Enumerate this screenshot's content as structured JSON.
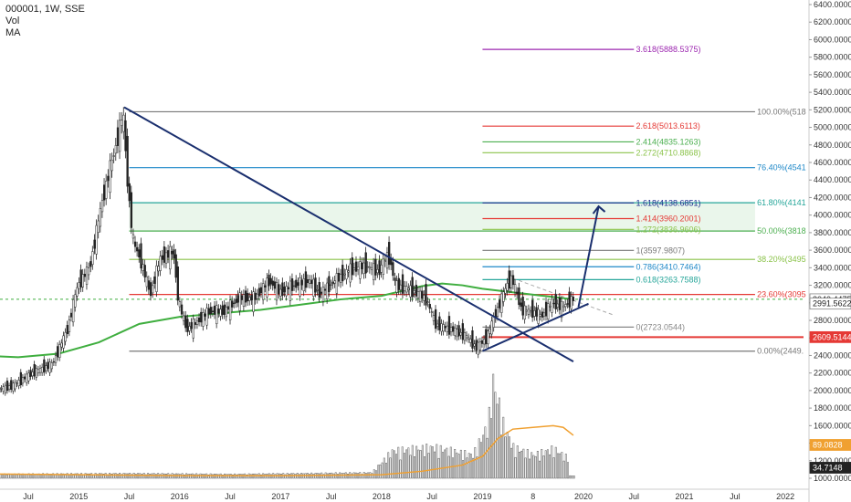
{
  "header": {
    "symbol": "000001, 1W, SSE",
    "vol": "Vol",
    "ma": "MA"
  },
  "colors": {
    "trendline": "#1a2f6e",
    "ma": "#3fae3f",
    "vol_ma": "#f0a030",
    "candle": "#222222",
    "red_line": "#e53935",
    "badge_red": "#e53935"
  },
  "chart_data": {
    "type": "candlestick",
    "ylim": [
      1000,
      6400
    ],
    "y_ticks": [
      "6400.0000",
      "6200.0000",
      "6000.0000",
      "5800.0000",
      "5600.0000",
      "5400.0000",
      "5200.0000",
      "5000.0000",
      "4800.0000",
      "4600.0000",
      "4400.0000",
      "4200.0000",
      "4000.0000",
      "3800.0000",
      "3600.0000",
      "3400.0000",
      "3200.0000",
      "3000.0000",
      "2800.0000",
      "2600.0000",
      "2400.0000",
      "2200.0000",
      "2000.0000",
      "1800.0000",
      "1600.0000",
      "1400.0000",
      "1200.0000",
      "1000.0000"
    ],
    "y_tick_values": [
      6400,
      6200,
      6000,
      5800,
      5600,
      5400,
      5200,
      5000,
      4800,
      4600,
      4400,
      4200,
      4000,
      3800,
      3600,
      3400,
      3200,
      3000,
      2800,
      2600,
      2400,
      2200,
      2000,
      1800,
      1600,
      1400,
      1200,
      1000
    ],
    "x_ticks": [
      {
        "label": "Jul",
        "t": 2014.5
      },
      {
        "label": "2015",
        "t": 2015.0
      },
      {
        "label": "Jul",
        "t": 2015.5
      },
      {
        "label": "2016",
        "t": 2016.0
      },
      {
        "label": "Jul",
        "t": 2016.5
      },
      {
        "label": "2017",
        "t": 2017.0
      },
      {
        "label": "Jul",
        "t": 2017.5
      },
      {
        "label": "2018",
        "t": 2018.0
      },
      {
        "label": "Jul",
        "t": 2018.5
      },
      {
        "label": "2019",
        "t": 2019.0
      },
      {
        "label": "8",
        "t": 2019.5
      },
      {
        "label": "2020",
        "t": 2020.0
      },
      {
        "label": "Jul",
        "t": 2020.5
      },
      {
        "label": "2021",
        "t": 2021.0
      },
      {
        "label": "Jul",
        "t": 2021.5
      },
      {
        "label": "2022",
        "t": 2022.0
      }
    ],
    "price_path": [
      [
        2014.15,
        2000
      ],
      [
        2014.35,
        2050
      ],
      [
        2014.55,
        2200
      ],
      [
        2014.75,
        2300
      ],
      [
        2014.9,
        2700
      ],
      [
        2015.0,
        3200
      ],
      [
        2015.12,
        3400
      ],
      [
        2015.25,
        4200
      ],
      [
        2015.38,
        4800
      ],
      [
        2015.45,
        5166
      ],
      [
        2015.5,
        4300
      ],
      [
        2015.55,
        3700
      ],
      [
        2015.62,
        3500
      ],
      [
        2015.72,
        3100
      ],
      [
        2015.82,
        3500
      ],
      [
        2015.95,
        3580
      ],
      [
        2016.0,
        3000
      ],
      [
        2016.08,
        2700
      ],
      [
        2016.15,
        2750
      ],
      [
        2016.3,
        2900
      ],
      [
        2016.45,
        2900
      ],
      [
        2016.6,
        3050
      ],
      [
        2016.75,
        3050
      ],
      [
        2016.9,
        3250
      ],
      [
        2017.0,
        3120
      ],
      [
        2017.15,
        3200
      ],
      [
        2017.3,
        3250
      ],
      [
        2017.4,
        3100
      ],
      [
        2017.55,
        3250
      ],
      [
        2017.7,
        3380
      ],
      [
        2017.85,
        3420
      ],
      [
        2017.98,
        3360
      ],
      [
        2018.08,
        3550
      ],
      [
        2018.15,
        3200
      ],
      [
        2018.3,
        3150
      ],
      [
        2018.45,
        3050
      ],
      [
        2018.55,
        2750
      ],
      [
        2018.7,
        2700
      ],
      [
        2018.85,
        2620
      ],
      [
        2018.95,
        2490
      ],
      [
        2019.05,
        2600
      ],
      [
        2019.15,
        2900
      ],
      [
        2019.25,
        3200
      ],
      [
        2019.3,
        3280
      ],
      [
        2019.4,
        2920
      ],
      [
        2019.5,
        2900
      ],
      [
        2019.6,
        2850
      ],
      [
        2019.7,
        3000
      ],
      [
        2019.8,
        2950
      ],
      [
        2019.9,
        3040
      ]
    ],
    "ma_path": [
      [
        2014.0,
        2400
      ],
      [
        2014.4,
        2380
      ],
      [
        2014.8,
        2420
      ],
      [
        2015.2,
        2550
      ],
      [
        2015.6,
        2760
      ],
      [
        2016.0,
        2840
      ],
      [
        2016.4,
        2880
      ],
      [
        2016.8,
        2920
      ],
      [
        2017.2,
        2980
      ],
      [
        2017.6,
        3040
      ],
      [
        2018.0,
        3080
      ],
      [
        2018.4,
        3190
      ],
      [
        2018.6,
        3220
      ],
      [
        2018.8,
        3200
      ],
      [
        2019.0,
        3160
      ],
      [
        2019.3,
        3120
      ],
      [
        2019.6,
        3080
      ],
      [
        2019.9,
        3040
      ]
    ],
    "volume_spikes": [
      [
        2014.0,
        1050
      ],
      [
        2015.5,
        1060
      ],
      [
        2016.5,
        1050
      ],
      [
        2017.9,
        1070
      ],
      [
        2018.1,
        1350
      ],
      [
        2018.5,
        1400
      ],
      [
        2018.9,
        1300
      ],
      [
        2019.05,
        1700
      ],
      [
        2019.1,
        2250
      ],
      [
        2019.15,
        2000
      ],
      [
        2019.2,
        1700
      ],
      [
        2019.3,
        1400
      ],
      [
        2019.5,
        1300
      ],
      [
        2019.7,
        1380
      ],
      [
        2019.85,
        1250
      ]
    ],
    "volume_ma_path": [
      [
        2014.0,
        1050
      ],
      [
        2015.0,
        1040
      ],
      [
        2016.0,
        1030
      ],
      [
        2017.0,
        1030
      ],
      [
        2018.0,
        1040
      ],
      [
        2018.4,
        1080
      ],
      [
        2018.8,
        1150
      ],
      [
        2019.0,
        1250
      ],
      [
        2019.15,
        1450
      ],
      [
        2019.3,
        1560
      ],
      [
        2019.5,
        1580
      ],
      [
        2019.7,
        1600
      ],
      [
        2019.8,
        1580
      ],
      [
        2019.9,
        1490
      ]
    ],
    "fib_retracement": [
      {
        "label": "0.00%(2449.",
        "value": 2449,
        "color": "#787878"
      },
      {
        "label": "23.60%(3095",
        "value": 3095,
        "color": "#e53935"
      },
      {
        "label": "38.20%(3495",
        "value": 3495,
        "color": "#8bc34a"
      },
      {
        "label": "50.00%(3818",
        "value": 3818,
        "color": "#4caf50"
      },
      {
        "label": "61.80%(4141",
        "value": 4141,
        "color": "#26a69a"
      },
      {
        "label": "76.40%(4541",
        "value": 4541,
        "color": "#1e88c8"
      },
      {
        "label": "100.00%(518",
        "value": 5178,
        "color": "#787878"
      }
    ],
    "fib_extension": [
      {
        "label": "0(2723.0544)",
        "value": 2723,
        "color": "#888888"
      },
      {
        "label": "0.618(3263.7588)",
        "value": 3264,
        "color": "#26a69a"
      },
      {
        "label": "0.786(3410.7464)",
        "value": 3411,
        "color": "#1e88c8"
      },
      {
        "label": "1(3597.9807)",
        "value": 3598,
        "color": "#787878"
      },
      {
        "label": "1.272(3836.9606)",
        "value": 3837,
        "color": "#8bc34a"
      },
      {
        "label": "1.414(3960.2001)",
        "value": 3960,
        "color": "#e53935"
      },
      {
        "label": "1.618(4138.6851)",
        "value": 4139,
        "color": "#1a2f8e"
      },
      {
        "label": "2.272(4710.8868)",
        "value": 4711,
        "color": "#8bc34a"
      },
      {
        "label": "2.414(4835.1263)",
        "value": 4835,
        "color": "#4caf50"
      },
      {
        "label": "2.618(5013.6113)",
        "value": 5014,
        "color": "#e53935"
      },
      {
        "label": "3.618(5888.5375)",
        "value": 5889,
        "color": "#9c27b0"
      }
    ],
    "price_badges": [
      {
        "label": "3040.4475",
        "value": 3040,
        "bg": "#ffffff",
        "fg": "#222222",
        "border": "#888888"
      },
      {
        "label": "2991.5622",
        "value": 2991,
        "bg": "#ffffff",
        "fg": "#222222",
        "border": "#888888"
      },
      {
        "label": "2609.5144",
        "value": 2609,
        "bg": "#e53935",
        "fg": "#ffffff",
        "border": "#e53935"
      }
    ],
    "volume_badges": [
      {
        "label": "89.0828",
        "value": 1380,
        "bg": "#f0a030",
        "fg": "#ffffff"
      },
      {
        "label": "34.7148",
        "value": 1120,
        "bg": "#222222",
        "fg": "#ffffff"
      }
    ],
    "trendlines": [
      {
        "name": "downtrend",
        "from": [
          2015.45,
          5230
        ],
        "to": [
          2019.9,
          2330
        ]
      },
      {
        "name": "uptrend",
        "from": [
          2019.0,
          2450
        ],
        "to": [
          2020.05,
          2990
        ]
      }
    ],
    "projection_arrow": {
      "from": [
        2019.95,
        2950
      ],
      "to": [
        2020.15,
        4100
      ]
    }
  }
}
